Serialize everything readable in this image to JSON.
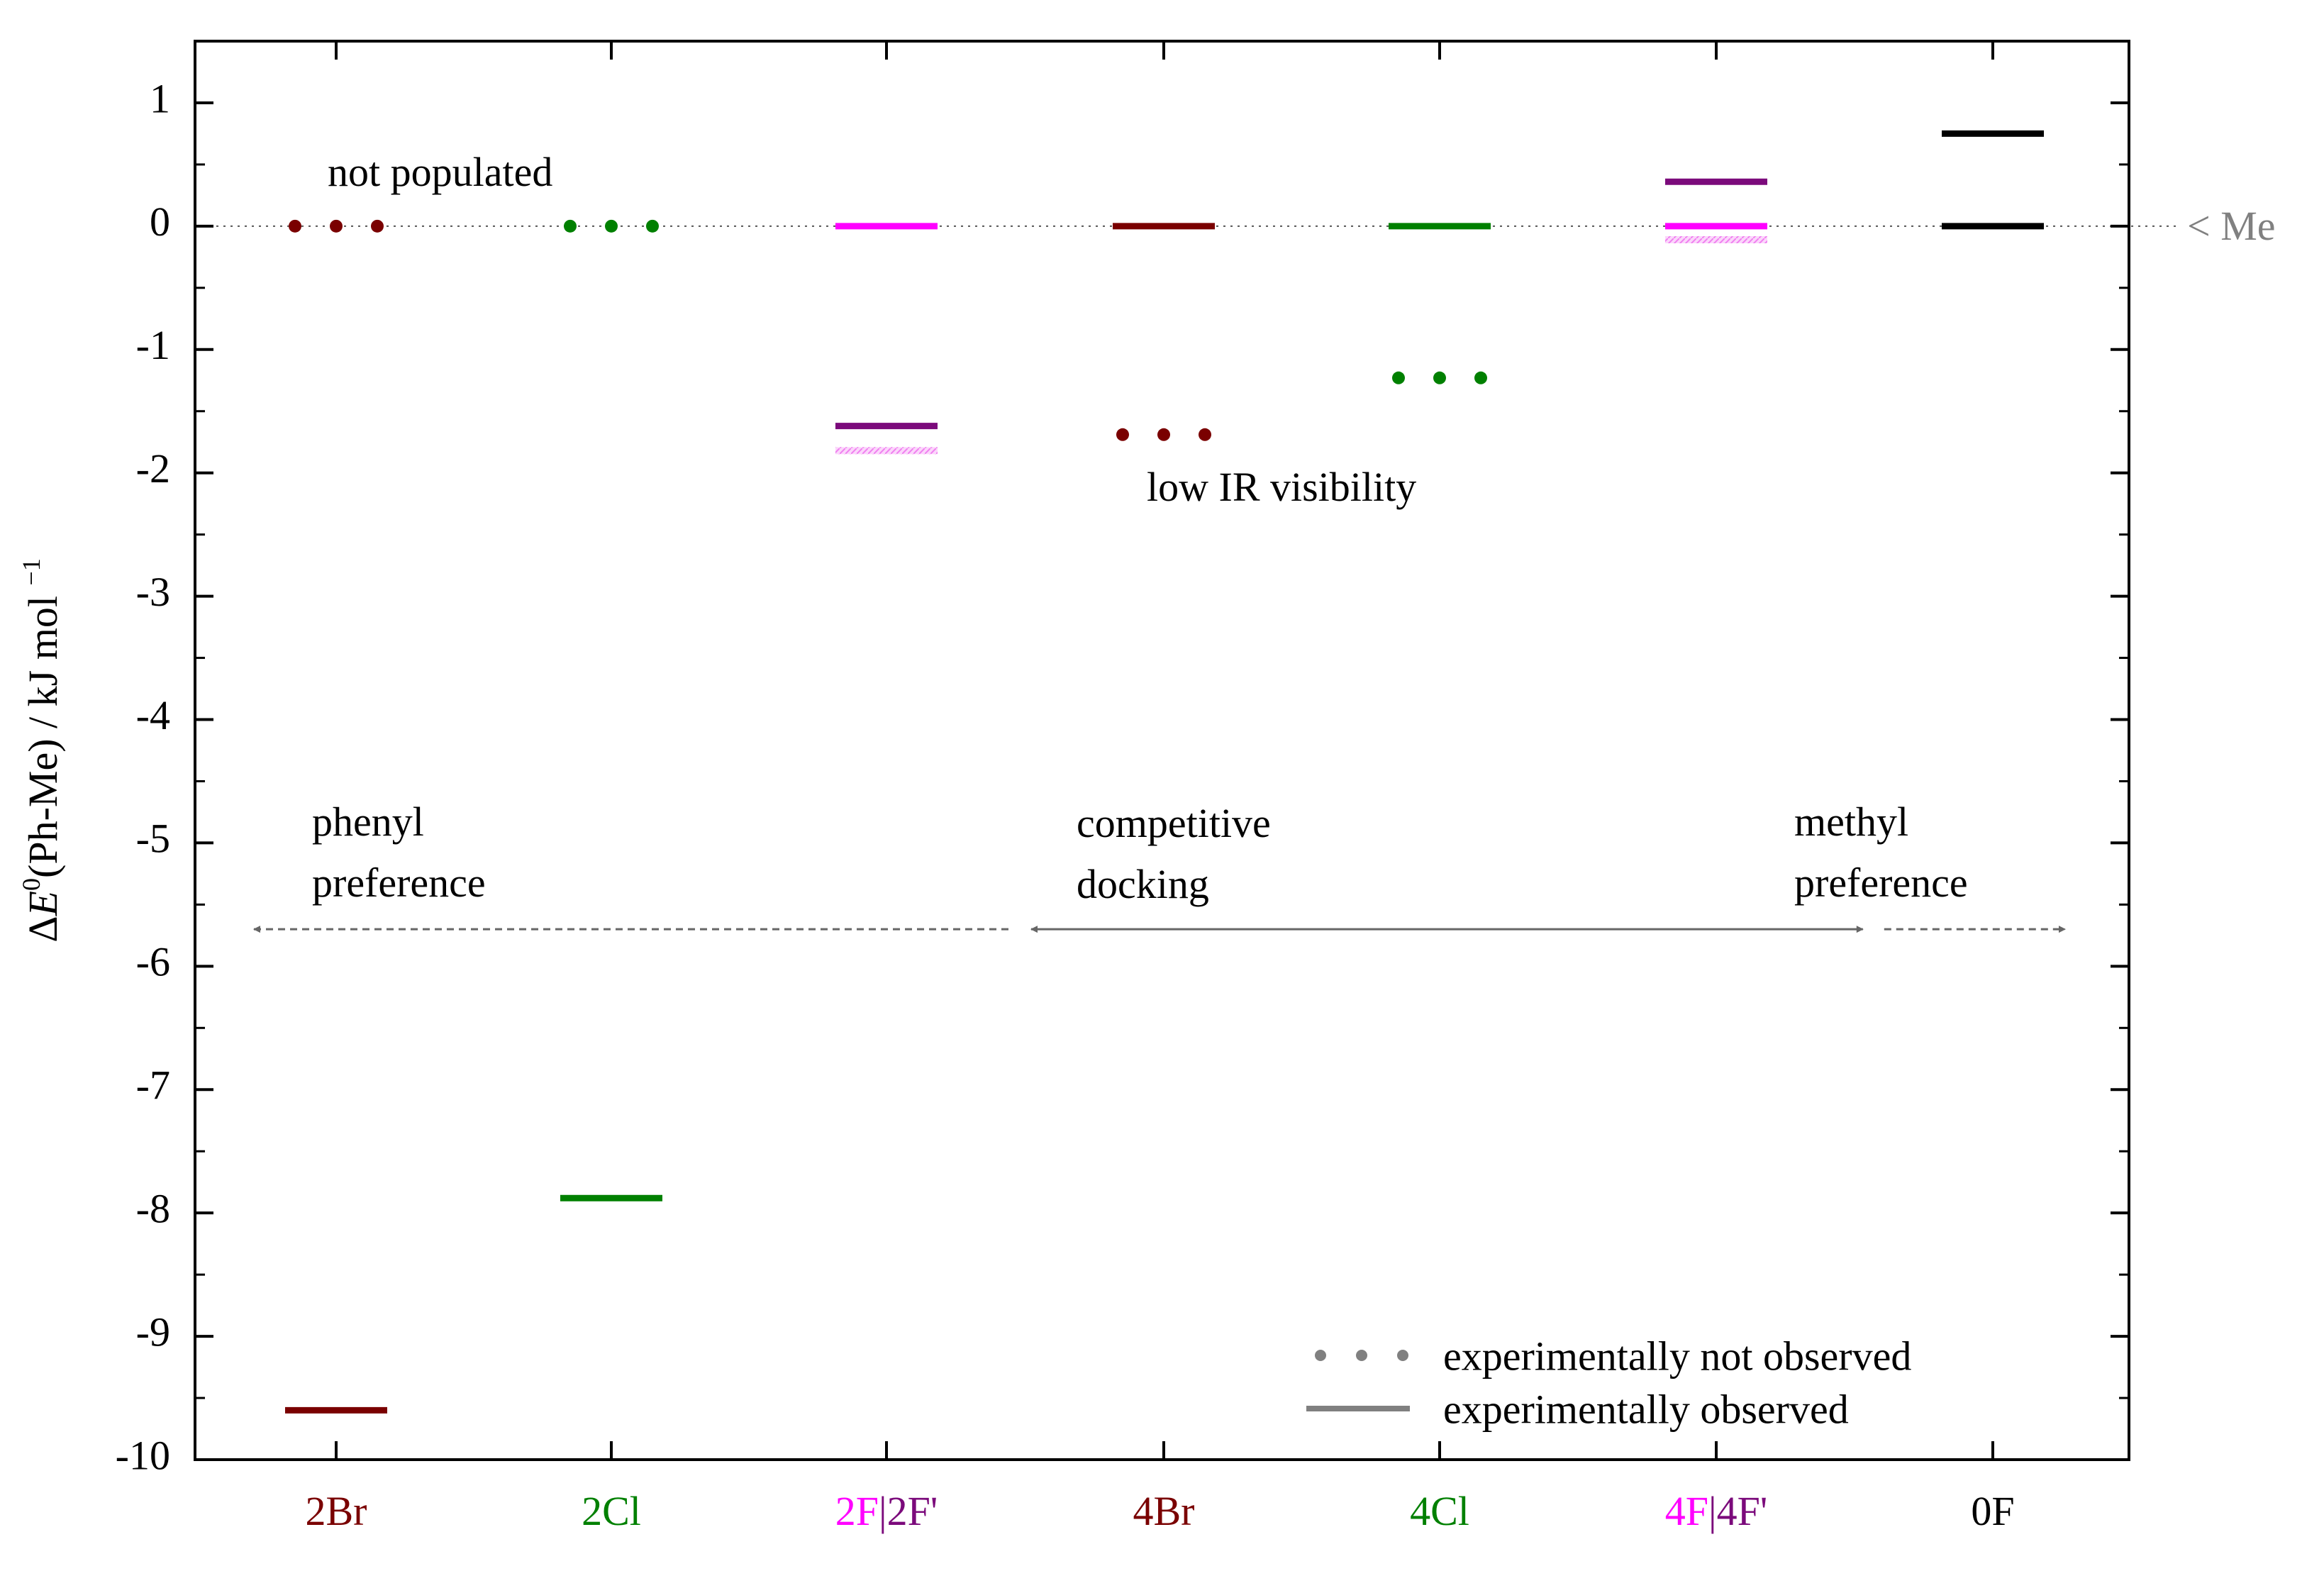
{
  "chart_data": {
    "type": "level-diagram",
    "ylabel": {
      "prefix": "Δ",
      "symbol": "E",
      "superscript": "0",
      "paren": "(Ph-Me) / kJ mol ",
      "unit_sup": "−1"
    },
    "ylim": [
      -10,
      1.5
    ],
    "yticks": [
      1,
      0,
      -1,
      -2,
      -3,
      -4,
      -5,
      -6,
      -7,
      -8,
      -9,
      -10
    ],
    "ytick_labels": [
      "1",
      "0",
      "-1",
      "-2",
      "-3",
      "-4",
      "-5",
      "-6",
      "-7",
      "-8",
      "-9",
      "-10"
    ],
    "colors": {
      "brown": "#7a0000",
      "green": "#008000",
      "magenta": "#ff00ff",
      "purple": "#7b0a7b",
      "black": "#000000",
      "gray": "#808080",
      "lightmagenta": "#f5a8f5"
    },
    "categories": [
      {
        "labels": [
          {
            "text": "2Br",
            "color": "#7a0000"
          }
        ]
      },
      {
        "labels": [
          {
            "text": "2Cl",
            "color": "#008000"
          }
        ]
      },
      {
        "labels": [
          {
            "text": "2F",
            "color": "#ff00ff"
          },
          {
            "text": "|",
            "color": "#7b0a7b"
          },
          {
            "text": "2F'",
            "color": "#7b0a7b"
          }
        ]
      },
      {
        "labels": [
          {
            "text": "4Br",
            "color": "#7a0000"
          }
        ]
      },
      {
        "labels": [
          {
            "text": "4Cl",
            "color": "#008000"
          }
        ]
      },
      {
        "labels": [
          {
            "text": "4F",
            "color": "#ff00ff"
          },
          {
            "text": "|",
            "color": "#7b0a7b"
          },
          {
            "text": "4F'",
            "color": "#7b0a7b"
          }
        ]
      },
      {
        "labels": [
          {
            "text": "0F",
            "color": "#000000"
          }
        ]
      }
    ],
    "levels": [
      {
        "cat": 0,
        "value": 0,
        "style": "dotted",
        "color": "#7a0000"
      },
      {
        "cat": 0,
        "value": -9.6,
        "style": "solid",
        "color": "#7a0000"
      },
      {
        "cat": 1,
        "value": 0,
        "style": "dotted",
        "color": "#008000"
      },
      {
        "cat": 1,
        "value": -7.88,
        "style": "solid",
        "color": "#008000"
      },
      {
        "cat": 2,
        "value": 0,
        "style": "solid",
        "color": "#ff00ff"
      },
      {
        "cat": 2,
        "value": -1.62,
        "style": "solid",
        "color": "#7b0a7b"
      },
      {
        "cat": 2,
        "value": -1.82,
        "style": "hatched",
        "color": "#f5a8f5"
      },
      {
        "cat": 3,
        "value": 0,
        "style": "solid",
        "color": "#7a0000"
      },
      {
        "cat": 3,
        "value": -1.69,
        "style": "dotted",
        "color": "#7a0000"
      },
      {
        "cat": 4,
        "value": 0,
        "style": "solid",
        "color": "#008000"
      },
      {
        "cat": 4,
        "value": -1.23,
        "style": "dotted",
        "color": "#008000"
      },
      {
        "cat": 5,
        "value": 0.36,
        "style": "solid",
        "color": "#7b0a7b"
      },
      {
        "cat": 5,
        "value": 0,
        "style": "solid",
        "color": "#ff00ff"
      },
      {
        "cat": 5,
        "value": -0.11,
        "style": "hatched",
        "color": "#f5a8f5"
      },
      {
        "cat": 6,
        "value": 0.75,
        "style": "solid",
        "color": "#000000"
      },
      {
        "cat": 6,
        "value": 0,
        "style": "solid",
        "color": "#000000"
      }
    ],
    "reference_line": {
      "value": 0,
      "label": "< Me"
    },
    "annotations": {
      "not_populated": "not populated",
      "low_ir": "low IR visibility",
      "phenyl": [
        "phenyl",
        "preference"
      ],
      "competitive": [
        "competitive",
        "docking"
      ],
      "methyl": [
        "methyl",
        "preference"
      ]
    },
    "regions": {
      "arrow_level": -5.7,
      "phenyl_end": 2.5,
      "methyl_start": 5.6
    },
    "legend": {
      "position": "bottom-right",
      "items": [
        {
          "style": "dotted",
          "label": "experimentally not observed"
        },
        {
          "style": "solid",
          "label": "experimentally observed"
        }
      ]
    }
  }
}
